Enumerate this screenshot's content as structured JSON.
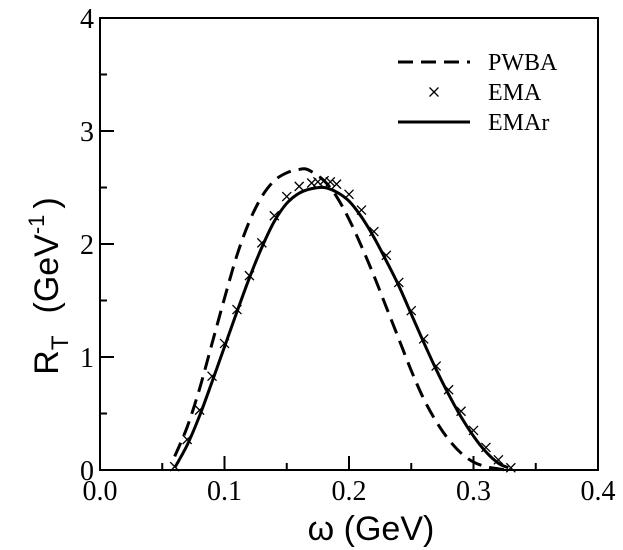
{
  "chart_data": {
    "type": "line",
    "xlabel": "ω   (GeV)",
    "ylabel": {
      "base": "R",
      "sub": "T",
      "unit_open": "(GeV",
      "sup": "-1",
      "unit_close": ")"
    },
    "xlim": [
      0.0,
      0.4
    ],
    "ylim": [
      0,
      4
    ],
    "xticks": [
      "0.0",
      "0.1",
      "0.2",
      "0.3",
      "0.4"
    ],
    "yticks": [
      "0",
      "1",
      "2",
      "3",
      "4"
    ],
    "grid": false,
    "legend_position": "top-right",
    "series": [
      {
        "name": "PWBA",
        "style": "dashed",
        "color": "#000000",
        "x": [
          0.06,
          0.07,
          0.08,
          0.09,
          0.1,
          0.11,
          0.12,
          0.13,
          0.14,
          0.15,
          0.16,
          0.165,
          0.17,
          0.18,
          0.19,
          0.2,
          0.21,
          0.22,
          0.23,
          0.24,
          0.25,
          0.26,
          0.27,
          0.28,
          0.29,
          0.3,
          0.31,
          0.32,
          0.326
        ],
        "y": [
          0.12,
          0.38,
          0.72,
          1.12,
          1.52,
          1.9,
          2.2,
          2.42,
          2.56,
          2.63,
          2.66,
          2.665,
          2.64,
          2.56,
          2.42,
          2.22,
          1.98,
          1.72,
          1.44,
          1.16,
          0.88,
          0.63,
          0.43,
          0.27,
          0.15,
          0.07,
          0.03,
          0.01,
          0.0
        ]
      },
      {
        "name": "EMA",
        "style": "markers",
        "marker": "x",
        "color": "#000000",
        "x": [
          0.06,
          0.07,
          0.08,
          0.09,
          0.1,
          0.11,
          0.12,
          0.13,
          0.14,
          0.15,
          0.16,
          0.17,
          0.175,
          0.18,
          0.185,
          0.19,
          0.2,
          0.21,
          0.22,
          0.23,
          0.24,
          0.25,
          0.26,
          0.27,
          0.28,
          0.29,
          0.3,
          0.31,
          0.32,
          0.33
        ],
        "y": [
          0.03,
          0.27,
          0.53,
          0.83,
          1.12,
          1.42,
          1.72,
          2.01,
          2.25,
          2.42,
          2.51,
          2.54,
          2.55,
          2.56,
          2.55,
          2.53,
          2.44,
          2.3,
          2.11,
          1.9,
          1.66,
          1.41,
          1.16,
          0.92,
          0.71,
          0.52,
          0.35,
          0.2,
          0.09,
          0.02
        ]
      },
      {
        "name": "EMAr",
        "style": "solid",
        "color": "#000000",
        "x": [
          0.06,
          0.07,
          0.08,
          0.09,
          0.1,
          0.11,
          0.12,
          0.13,
          0.14,
          0.15,
          0.16,
          0.17,
          0.18,
          0.19,
          0.2,
          0.21,
          0.22,
          0.23,
          0.24,
          0.25,
          0.26,
          0.27,
          0.28,
          0.29,
          0.3,
          0.31,
          0.32,
          0.328
        ],
        "y": [
          0.02,
          0.22,
          0.48,
          0.78,
          1.09,
          1.4,
          1.7,
          1.97,
          2.2,
          2.36,
          2.45,
          2.49,
          2.5,
          2.46,
          2.38,
          2.24,
          2.06,
          1.85,
          1.63,
          1.38,
          1.13,
          0.89,
          0.67,
          0.47,
          0.3,
          0.16,
          0.06,
          0.02
        ]
      }
    ]
  }
}
